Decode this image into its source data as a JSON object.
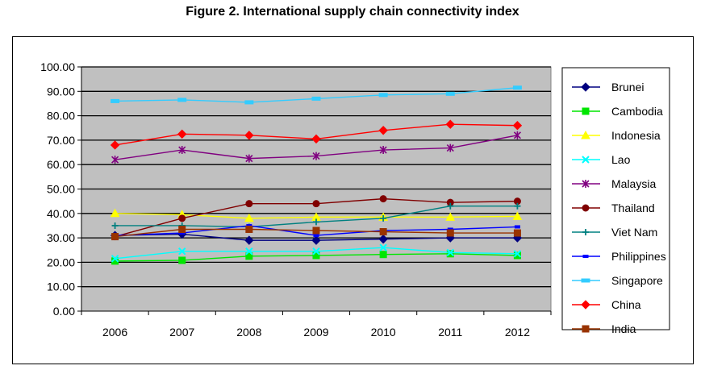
{
  "chart_data": {
    "type": "line",
    "title": "Figure 2. International supply chain connectivity index",
    "xlabel": "",
    "ylabel": "",
    "ylim": [
      0,
      100
    ],
    "y_ticks": [
      "0.00",
      "10.00",
      "20.00",
      "30.00",
      "40.00",
      "50.00",
      "60.00",
      "70.00",
      "80.00",
      "90.00",
      "100.00"
    ],
    "categories": [
      "2006",
      "2007",
      "2008",
      "2009",
      "2010",
      "2011",
      "2012"
    ],
    "grid": true,
    "legend_position": "right",
    "series": [
      {
        "name": "Brunei",
        "color": "#000080",
        "marker": "diamond",
        "values": [
          31.0,
          31.5,
          29.0,
          29.0,
          29.5,
          30.0,
          30.0
        ]
      },
      {
        "name": "Cambodia",
        "color": "#00e600",
        "marker": "square",
        "values": [
          20.5,
          20.8,
          22.5,
          22.8,
          23.2,
          23.5,
          22.8
        ]
      },
      {
        "name": "Indonesia",
        "color": "#ffff00",
        "marker": "triangle",
        "values": [
          40.0,
          39.5,
          38.0,
          38.5,
          38.5,
          38.5,
          38.8
        ]
      },
      {
        "name": "Lao",
        "color": "#00ffff",
        "marker": "x",
        "values": [
          21.5,
          24.5,
          24.5,
          24.5,
          26.0,
          24.0,
          23.5
        ]
      },
      {
        "name": "Malaysia",
        "color": "#800080",
        "marker": "star",
        "values": [
          62.0,
          66.0,
          62.5,
          63.5,
          66.0,
          66.8,
          72.0
        ]
      },
      {
        "name": "Thailand",
        "color": "#800000",
        "marker": "circle",
        "values": [
          30.5,
          38.0,
          44.0,
          44.0,
          46.0,
          44.5,
          45.0
        ]
      },
      {
        "name": "Viet Nam",
        "color": "#008080",
        "marker": "plus",
        "values": [
          35.0,
          35.0,
          34.5,
          36.5,
          38.0,
          43.0,
          43.0
        ]
      },
      {
        "name": "Philippines",
        "color": "#0000ff",
        "marker": "dash",
        "values": [
          31.0,
          32.0,
          35.0,
          31.0,
          33.0,
          33.5,
          34.5
        ]
      },
      {
        "name": "Singapore",
        "color": "#33ccff",
        "marker": "hbar",
        "values": [
          86.0,
          86.5,
          85.5,
          87.0,
          88.5,
          89.0,
          91.5
        ]
      },
      {
        "name": "China",
        "color": "#ff0000",
        "marker": "diamond",
        "values": [
          68.0,
          72.5,
          72.0,
          70.5,
          74.0,
          76.5,
          76.0
        ]
      },
      {
        "name": "India",
        "color": "#993300",
        "marker": "square",
        "values": [
          30.5,
          33.5,
          33.5,
          33.0,
          32.5,
          32.0,
          32.0
        ]
      }
    ]
  }
}
